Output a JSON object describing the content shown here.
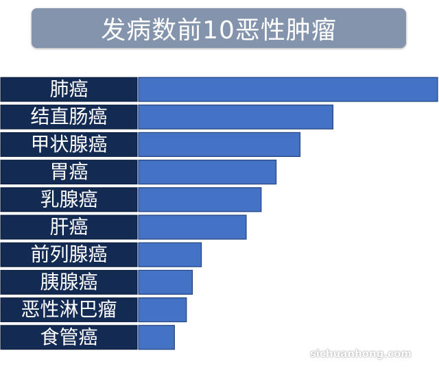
{
  "title": "发病数前10恶性肿瘤",
  "watermark": "sichuanhong.com",
  "colors": {
    "label_background": "#132a52",
    "bar_fill": "#4472c4",
    "bar_stroke": "#23427f",
    "title_background": "#8494ac"
  },
  "chart_data": {
    "type": "bar",
    "orientation": "horizontal",
    "title": "发病数前10恶性肿瘤",
    "categories": [
      "肺癌",
      "结直肠癌",
      "甲状腺癌",
      "胃癌",
      "乳腺癌",
      "肝癌",
      "前列腺癌",
      "胰腺癌",
      "恶性淋巴瘤",
      "食管癌"
    ],
    "values": [
      100,
      65,
      54,
      46,
      41,
      36,
      21,
      18,
      16,
      12
    ],
    "xlabel": "",
    "ylabel": "",
    "grid": false,
    "legend": "none"
  }
}
